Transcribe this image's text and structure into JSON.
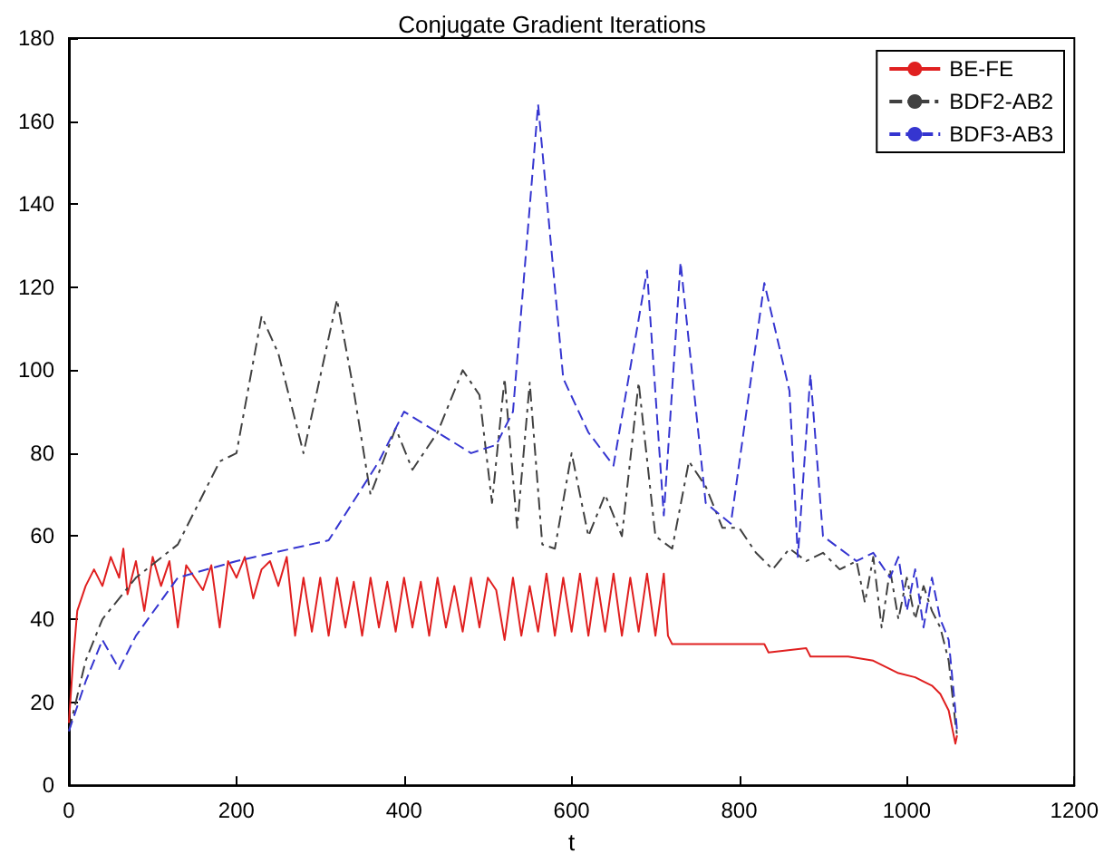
{
  "chart_data": {
    "type": "line",
    "title": "Conjugate Gradient Iterations",
    "xlabel": "t",
    "xlim": [
      0,
      1200
    ],
    "xticks": [
      0,
      200,
      400,
      600,
      800,
      1000,
      1200
    ],
    "ylim": [
      0,
      180
    ],
    "yticks": [
      0,
      20,
      40,
      60,
      80,
      100,
      120,
      140,
      160,
      180
    ],
    "grid": false,
    "legend": "top right",
    "marker": "none",
    "series": [
      {
        "name": "BE-FE",
        "color": "#e02020",
        "line_style": "solid",
        "x": [
          0,
          5,
          10,
          20,
          30,
          40,
          50,
          60,
          65,
          70,
          80,
          90,
          100,
          110,
          120,
          130,
          140,
          150,
          160,
          170,
          180,
          190,
          200,
          210,
          220,
          230,
          240,
          250,
          260,
          270,
          280,
          290,
          300,
          310,
          320,
          330,
          340,
          350,
          360,
          370,
          380,
          390,
          400,
          410,
          420,
          430,
          440,
          450,
          460,
          470,
          480,
          490,
          500,
          510,
          520,
          530,
          540,
          550,
          560,
          570,
          580,
          590,
          600,
          610,
          620,
          630,
          640,
          650,
          660,
          670,
          680,
          690,
          700,
          710,
          715,
          720,
          760,
          800,
          830,
          835,
          880,
          885,
          930,
          960,
          990,
          1010,
          1030,
          1040,
          1050,
          1056,
          1058,
          1060
        ],
        "values": [
          15,
          30,
          42,
          48,
          52,
          48,
          55,
          50,
          57,
          46,
          54,
          42,
          55,
          48,
          54,
          38,
          53,
          50,
          47,
          53,
          38,
          54,
          50,
          55,
          45,
          52,
          54,
          48,
          55,
          36,
          50,
          37,
          50,
          36,
          50,
          38,
          49,
          36,
          50,
          38,
          49,
          37,
          50,
          38,
          49,
          36,
          50,
          38,
          48,
          37,
          50,
          38,
          50,
          47,
          35,
          50,
          36,
          48,
          37,
          51,
          36,
          50,
          37,
          51,
          36,
          50,
          37,
          51,
          36,
          50,
          37,
          51,
          36,
          51,
          36,
          34,
          34,
          34,
          34,
          32,
          33,
          31,
          31,
          30,
          27,
          26,
          24,
          22,
          18,
          12,
          10,
          12
        ]
      },
      {
        "name": "BDF2-AB2",
        "color": "#404040",
        "line_style": "dashdot",
        "x": [
          0,
          20,
          40,
          80,
          130,
          180,
          200,
          230,
          250,
          280,
          320,
          340,
          360,
          390,
          410,
          440,
          470,
          490,
          505,
          520,
          535,
          550,
          565,
          580,
          600,
          620,
          640,
          660,
          680,
          700,
          720,
          740,
          760,
          780,
          800,
          820,
          840,
          860,
          880,
          900,
          920,
          940,
          950,
          960,
          970,
          980,
          990,
          1000,
          1010,
          1020,
          1030,
          1040,
          1050,
          1058,
          1060
        ],
        "values": [
          13,
          30,
          40,
          50,
          58,
          78,
          80,
          113,
          104,
          80,
          117,
          95,
          70,
          86,
          76,
          85,
          100,
          94,
          68,
          98,
          62,
          97,
          58,
          57,
          80,
          60,
          70,
          60,
          97,
          60,
          57,
          78,
          72,
          62,
          62,
          56,
          52,
          57,
          54,
          56,
          52,
          54,
          44,
          55,
          38,
          52,
          40,
          50,
          40,
          48,
          42,
          38,
          30,
          15,
          12
        ]
      },
      {
        "name": "BDF3-AB3",
        "color": "#3535d0",
        "line_style": "dashed",
        "x": [
          0,
          20,
          40,
          60,
          80,
          130,
          200,
          310,
          370,
          400,
          480,
          510,
          530,
          560,
          590,
          620,
          650,
          690,
          710,
          730,
          760,
          790,
          830,
          860,
          870,
          885,
          900,
          920,
          940,
          960,
          980,
          990,
          1000,
          1010,
          1020,
          1030,
          1040,
          1050,
          1058,
          1060
        ],
        "values": [
          13,
          25,
          35,
          28,
          36,
          50,
          54,
          59,
          78,
          90,
          80,
          82,
          90,
          164,
          98,
          85,
          77,
          124,
          65,
          126,
          68,
          63,
          121,
          95,
          55,
          99,
          60,
          57,
          54,
          56,
          50,
          55,
          42,
          52,
          38,
          50,
          40,
          35,
          18,
          13
        ]
      }
    ]
  }
}
